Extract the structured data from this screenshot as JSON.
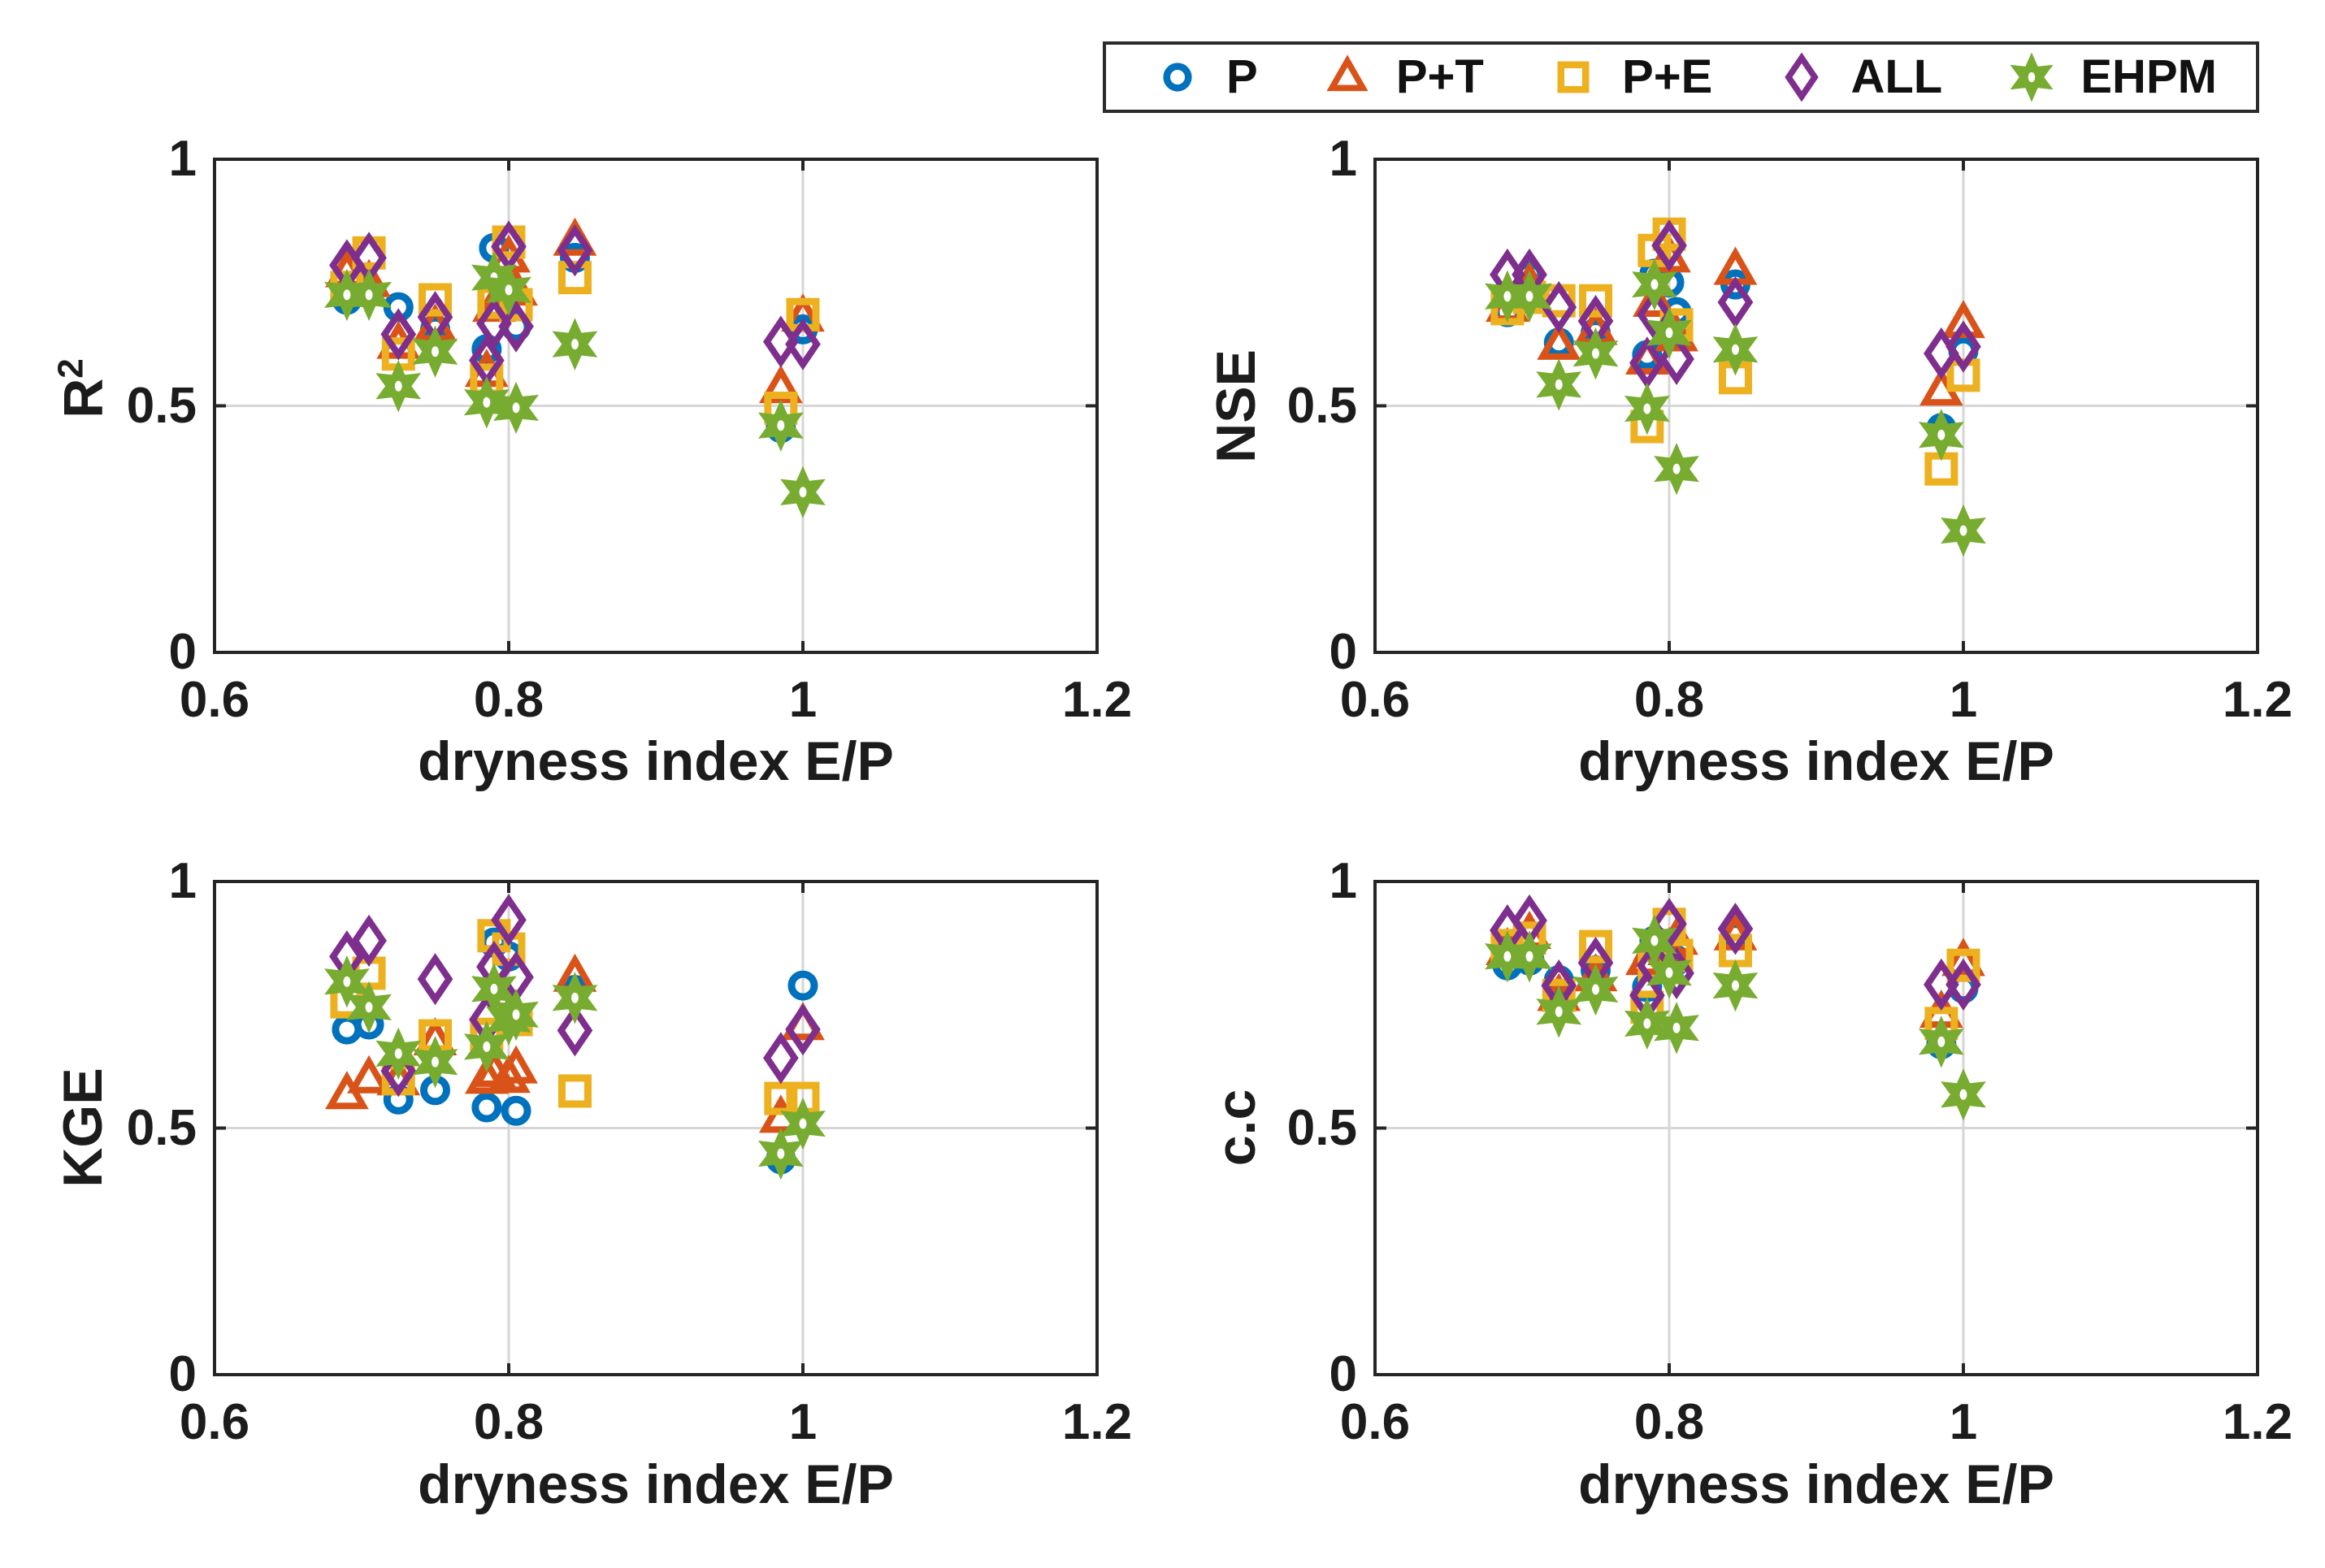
{
  "figure": {
    "background": "#ffffff",
    "legend_position": "top-right",
    "text_color": "#1c1c1c",
    "grid_color": "#d6d6d6",
    "axis_color": "#252525"
  },
  "legend": {
    "entries": [
      {
        "label": "P",
        "marker": "circle",
        "color": "#0072BD"
      },
      {
        "label": "P+T",
        "marker": "triangle",
        "color": "#D95319"
      },
      {
        "label": "P+E",
        "marker": "square",
        "color": "#EDB120"
      },
      {
        "label": "ALL",
        "marker": "diamond",
        "color": "#7E2F8E"
      },
      {
        "label": "EHPM",
        "marker": "hexagram",
        "color": "#77AC30"
      }
    ]
  },
  "axes": {
    "xlabel": "dryness index E/P",
    "xlim": [
      0.6,
      1.2
    ],
    "ylim": [
      0,
      1
    ],
    "xticks": [
      0.6,
      0.8,
      1.0,
      1.2
    ],
    "xtick_labels": [
      "0.6",
      "0.8",
      "1",
      "1.2"
    ],
    "yticks": [
      0,
      0.5,
      1
    ],
    "ytick_labels": [
      "0",
      "0.5",
      "1"
    ],
    "x_gridlines": [
      0.8,
      1.0
    ],
    "y_gridlines": [
      0.5
    ],
    "grid": true
  },
  "chart_data": [
    {
      "type": "scatter",
      "ylabel": "R",
      "ylabel_sup": "2",
      "x": [
        0.69,
        0.705,
        0.725,
        0.75,
        0.785,
        0.79,
        0.8,
        0.805,
        0.845,
        0.985,
        1.0
      ],
      "series": [
        {
          "name": "P",
          "marker": "circle",
          "color": "#0072BD",
          "y": [
            0.715,
            0.735,
            0.7,
            0.655,
            0.615,
            0.82,
            0.74,
            0.66,
            0.8,
            0.455,
            0.655
          ]
        },
        {
          "name": "P+T",
          "marker": "triangle",
          "color": "#D95319",
          "y": [
            0.77,
            0.75,
            0.625,
            0.66,
            0.568,
            0.7,
            0.8,
            0.733,
            0.834,
            0.535,
            0.68
          ]
        },
        {
          "name": "P+E",
          "marker": "square",
          "color": "#EDB120",
          "y": [
            0.74,
            0.81,
            0.605,
            0.715,
            0.552,
            0.71,
            0.832,
            0.705,
            0.76,
            0.495,
            0.685
          ]
        },
        {
          "name": "ALL",
          "marker": "diamond",
          "color": "#7E2F8E",
          "y": [
            0.785,
            0.8,
            0.645,
            0.68,
            0.592,
            0.667,
            0.823,
            0.661,
            0.815,
            0.63,
            0.625
          ]
        },
        {
          "name": "EHPM",
          "marker": "hexagram",
          "color": "#77AC30",
          "y": [
            0.725,
            0.725,
            0.54,
            0.61,
            0.507,
            0.76,
            0.735,
            0.496,
            0.625,
            0.46,
            0.325
          ]
        }
      ]
    },
    {
      "type": "scatter",
      "ylabel": "NSE",
      "x": [
        0.69,
        0.705,
        0.725,
        0.75,
        0.785,
        0.79,
        0.8,
        0.805,
        0.845,
        0.985,
        1.0
      ],
      "series": [
        {
          "name": "P",
          "marker": "circle",
          "color": "#0072BD",
          "y": [
            0.69,
            0.765,
            0.628,
            0.648,
            0.603,
            0.768,
            0.75,
            0.69,
            0.746,
            0.455,
            0.611
          ]
        },
        {
          "name": "P+T",
          "marker": "triangle",
          "color": "#D95319",
          "y": [
            0.7,
            0.745,
            0.623,
            0.653,
            0.593,
            0.71,
            0.8,
            0.64,
            0.775,
            0.53,
            0.667
          ]
        },
        {
          "name": "P+E",
          "marker": "square",
          "color": "#EDB120",
          "y": [
            0.697,
            0.72,
            0.713,
            0.713,
            0.458,
            0.815,
            0.848,
            0.664,
            0.557,
            0.372,
            0.562
          ]
        },
        {
          "name": "ALL",
          "marker": "diamond",
          "color": "#7E2F8E",
          "y": [
            0.766,
            0.766,
            0.7,
            0.672,
            0.587,
            0.685,
            0.825,
            0.595,
            0.71,
            0.606,
            0.62
          ]
        },
        {
          "name": "EHPM",
          "marker": "hexagram",
          "color": "#77AC30",
          "y": [
            0.722,
            0.722,
            0.543,
            0.606,
            0.494,
            0.746,
            0.648,
            0.372,
            0.614,
            0.441,
            0.247
          ]
        }
      ]
    },
    {
      "type": "scatter",
      "ylabel": "KGE",
      "x": [
        0.69,
        0.705,
        0.725,
        0.75,
        0.785,
        0.79,
        0.8,
        0.805,
        0.845,
        0.985,
        1.0
      ],
      "series": [
        {
          "name": "P",
          "marker": "circle",
          "color": "#0072BD",
          "y": [
            0.7,
            0.71,
            0.558,
            0.577,
            0.542,
            0.876,
            0.848,
            0.535,
            0.78,
            0.437,
            0.789
          ]
        },
        {
          "name": "P+T",
          "marker": "triangle",
          "color": "#D95319",
          "y": [
            0.568,
            0.6,
            0.596,
            0.677,
            0.599,
            0.613,
            0.601,
            0.62,
            0.806,
            0.52,
            0.708
          ]
        },
        {
          "name": "P+E",
          "marker": "square",
          "color": "#EDB120",
          "y": [
            0.756,
            0.814,
            0.6,
            0.687,
            0.69,
            0.89,
            0.863,
            0.72,
            0.575,
            0.56,
            0.56
          ]
        },
        {
          "name": "ALL",
          "marker": "diamond",
          "color": "#7E2F8E",
          "y": [
            0.848,
            0.88,
            0.616,
            0.802,
            0.72,
            0.827,
            0.922,
            0.806,
            0.698,
            0.642,
            0.7
          ]
        },
        {
          "name": "EHPM",
          "marker": "hexagram",
          "color": "#77AC30",
          "y": [
            0.797,
            0.745,
            0.651,
            0.634,
            0.665,
            0.782,
            0.72,
            0.73,
            0.764,
            0.448,
            0.509
          ]
        }
      ]
    },
    {
      "type": "scatter",
      "ylabel": "c.c",
      "x": [
        0.69,
        0.705,
        0.725,
        0.75,
        0.785,
        0.79,
        0.8,
        0.805,
        0.845,
        0.985,
        1.0
      ],
      "series": [
        {
          "name": "P",
          "marker": "circle",
          "color": "#0072BD",
          "y": [
            0.83,
            0.84,
            0.8,
            0.82,
            0.786,
            0.88,
            0.85,
            0.84,
            0.89,
            0.67,
            0.783
          ]
        },
        {
          "name": "P+T",
          "marker": "triangle",
          "color": "#D95319",
          "y": [
            0.86,
            0.893,
            0.767,
            0.807,
            0.84,
            0.868,
            0.86,
            0.881,
            0.89,
            0.733,
            0.838
          ]
        },
        {
          "name": "P+E",
          "marker": "square",
          "color": "#EDB120",
          "y": [
            0.87,
            0.885,
            0.769,
            0.868,
            0.745,
            0.83,
            0.913,
            0.85,
            0.86,
            0.712,
            0.83
          ]
        },
        {
          "name": "ALL",
          "marker": "diamond",
          "color": "#7E2F8E",
          "y": [
            0.901,
            0.921,
            0.789,
            0.835,
            0.769,
            0.83,
            0.914,
            0.814,
            0.904,
            0.791,
            0.791
          ]
        },
        {
          "name": "EHPM",
          "marker": "hexagram",
          "color": "#77AC30",
          "y": [
            0.848,
            0.848,
            0.736,
            0.781,
            0.712,
            0.88,
            0.815,
            0.703,
            0.789,
            0.675,
            0.568
          ]
        }
      ]
    }
  ]
}
